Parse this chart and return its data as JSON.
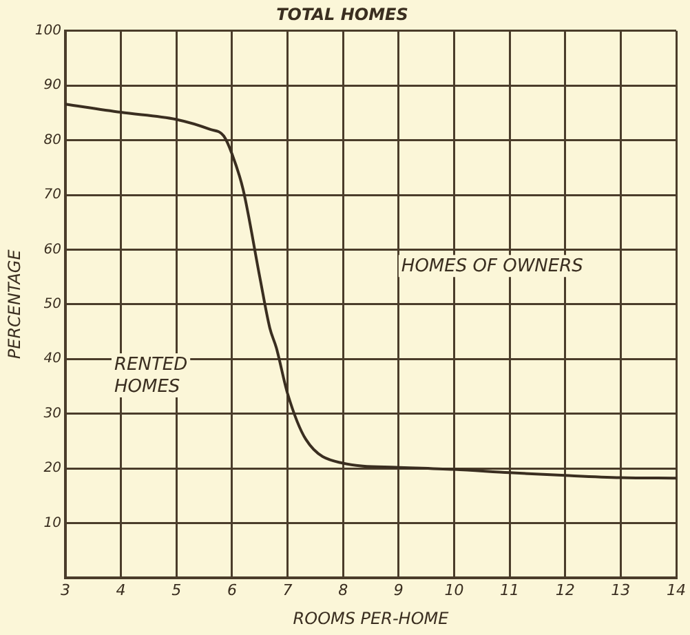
{
  "chart_data": {
    "type": "line",
    "title": "TOTAL HOMES",
    "xlabel": "ROOMS PER-HOME",
    "ylabel": "PERCENTAGE",
    "annotations": [
      "HOMES OF OWNERS",
      "RENTED HOMES"
    ],
    "xlim": [
      3,
      14
    ],
    "xticks": [
      3,
      4,
      5,
      6,
      7,
      8,
      9,
      10,
      11,
      12,
      13,
      14
    ],
    "ylim": [
      0,
      100
    ],
    "yticks": [
      10,
      20,
      30,
      40,
      50,
      60,
      70,
      80,
      90,
      100
    ],
    "grid": true,
    "legend": false,
    "marker": "none",
    "line_style": "solid",
    "series": [
      {
        "color": "#3a2e20",
        "x": [
          3,
          4,
          5,
          5.6,
          5.85,
          6,
          6.2,
          6.5,
          6.68,
          6.8,
          7,
          7.33,
          7.97,
          8.95,
          10,
          11,
          12,
          13,
          14
        ],
        "values": [
          86.6,
          85.1,
          83.8,
          82,
          80.8,
          77.5,
          71,
          55,
          45.7,
          42,
          33.7,
          25.3,
          21,
          20.2,
          19.8,
          19.2,
          18.7,
          18.3,
          18.2
        ]
      }
    ]
  }
}
